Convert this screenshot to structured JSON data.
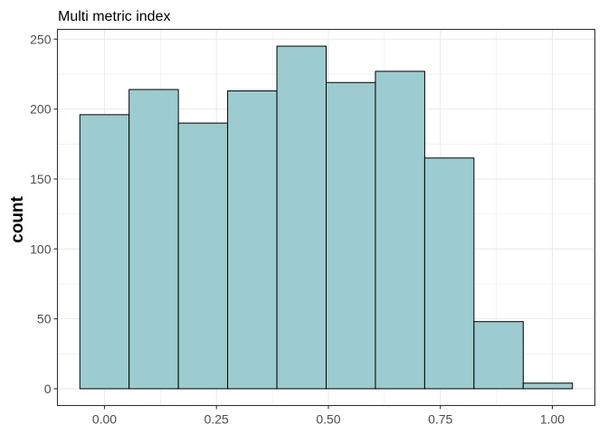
{
  "chart_data": {
    "type": "bar",
    "title": "Multi metric index",
    "xlabel": "",
    "ylabel": "count",
    "bin_width": 0.11,
    "bins": [
      {
        "x_start": -0.055,
        "x_end": 0.055,
        "value": 196
      },
      {
        "x_start": 0.055,
        "x_end": 0.165,
        "value": 214
      },
      {
        "x_start": 0.165,
        "x_end": 0.275,
        "value": 190
      },
      {
        "x_start": 0.275,
        "x_end": 0.385,
        "value": 213
      },
      {
        "x_start": 0.385,
        "x_end": 0.495,
        "value": 245
      },
      {
        "x_start": 0.495,
        "x_end": 0.605,
        "value": 219
      },
      {
        "x_start": 0.605,
        "x_end": 0.715,
        "value": 227
      },
      {
        "x_start": 0.715,
        "x_end": 0.825,
        "value": 165
      },
      {
        "x_start": 0.825,
        "x_end": 0.935,
        "value": 48
      },
      {
        "x_start": 0.935,
        "x_end": 1.045,
        "value": 4
      }
    ],
    "xlim": [
      -0.105,
      1.095
    ],
    "ylim": [
      -12,
      257
    ],
    "x_ticks": [
      {
        "value": 0.0,
        "label": "0.00"
      },
      {
        "value": 0.25,
        "label": "0.25"
      },
      {
        "value": 0.5,
        "label": "0.50"
      },
      {
        "value": 0.75,
        "label": "0.75"
      },
      {
        "value": 1.0,
        "label": "1.00"
      }
    ],
    "y_ticks": [
      {
        "value": 0,
        "label": "0"
      },
      {
        "value": 50,
        "label": "50"
      },
      {
        "value": 100,
        "label": "100"
      },
      {
        "value": 150,
        "label": "150"
      },
      {
        "value": 200,
        "label": "200"
      },
      {
        "value": 250,
        "label": "250"
      }
    ],
    "grid": true,
    "bar_fill": "#9ccccf",
    "bar_stroke": "#000000",
    "grid_color": "#ebebeb",
    "panel_border": "#333333"
  }
}
